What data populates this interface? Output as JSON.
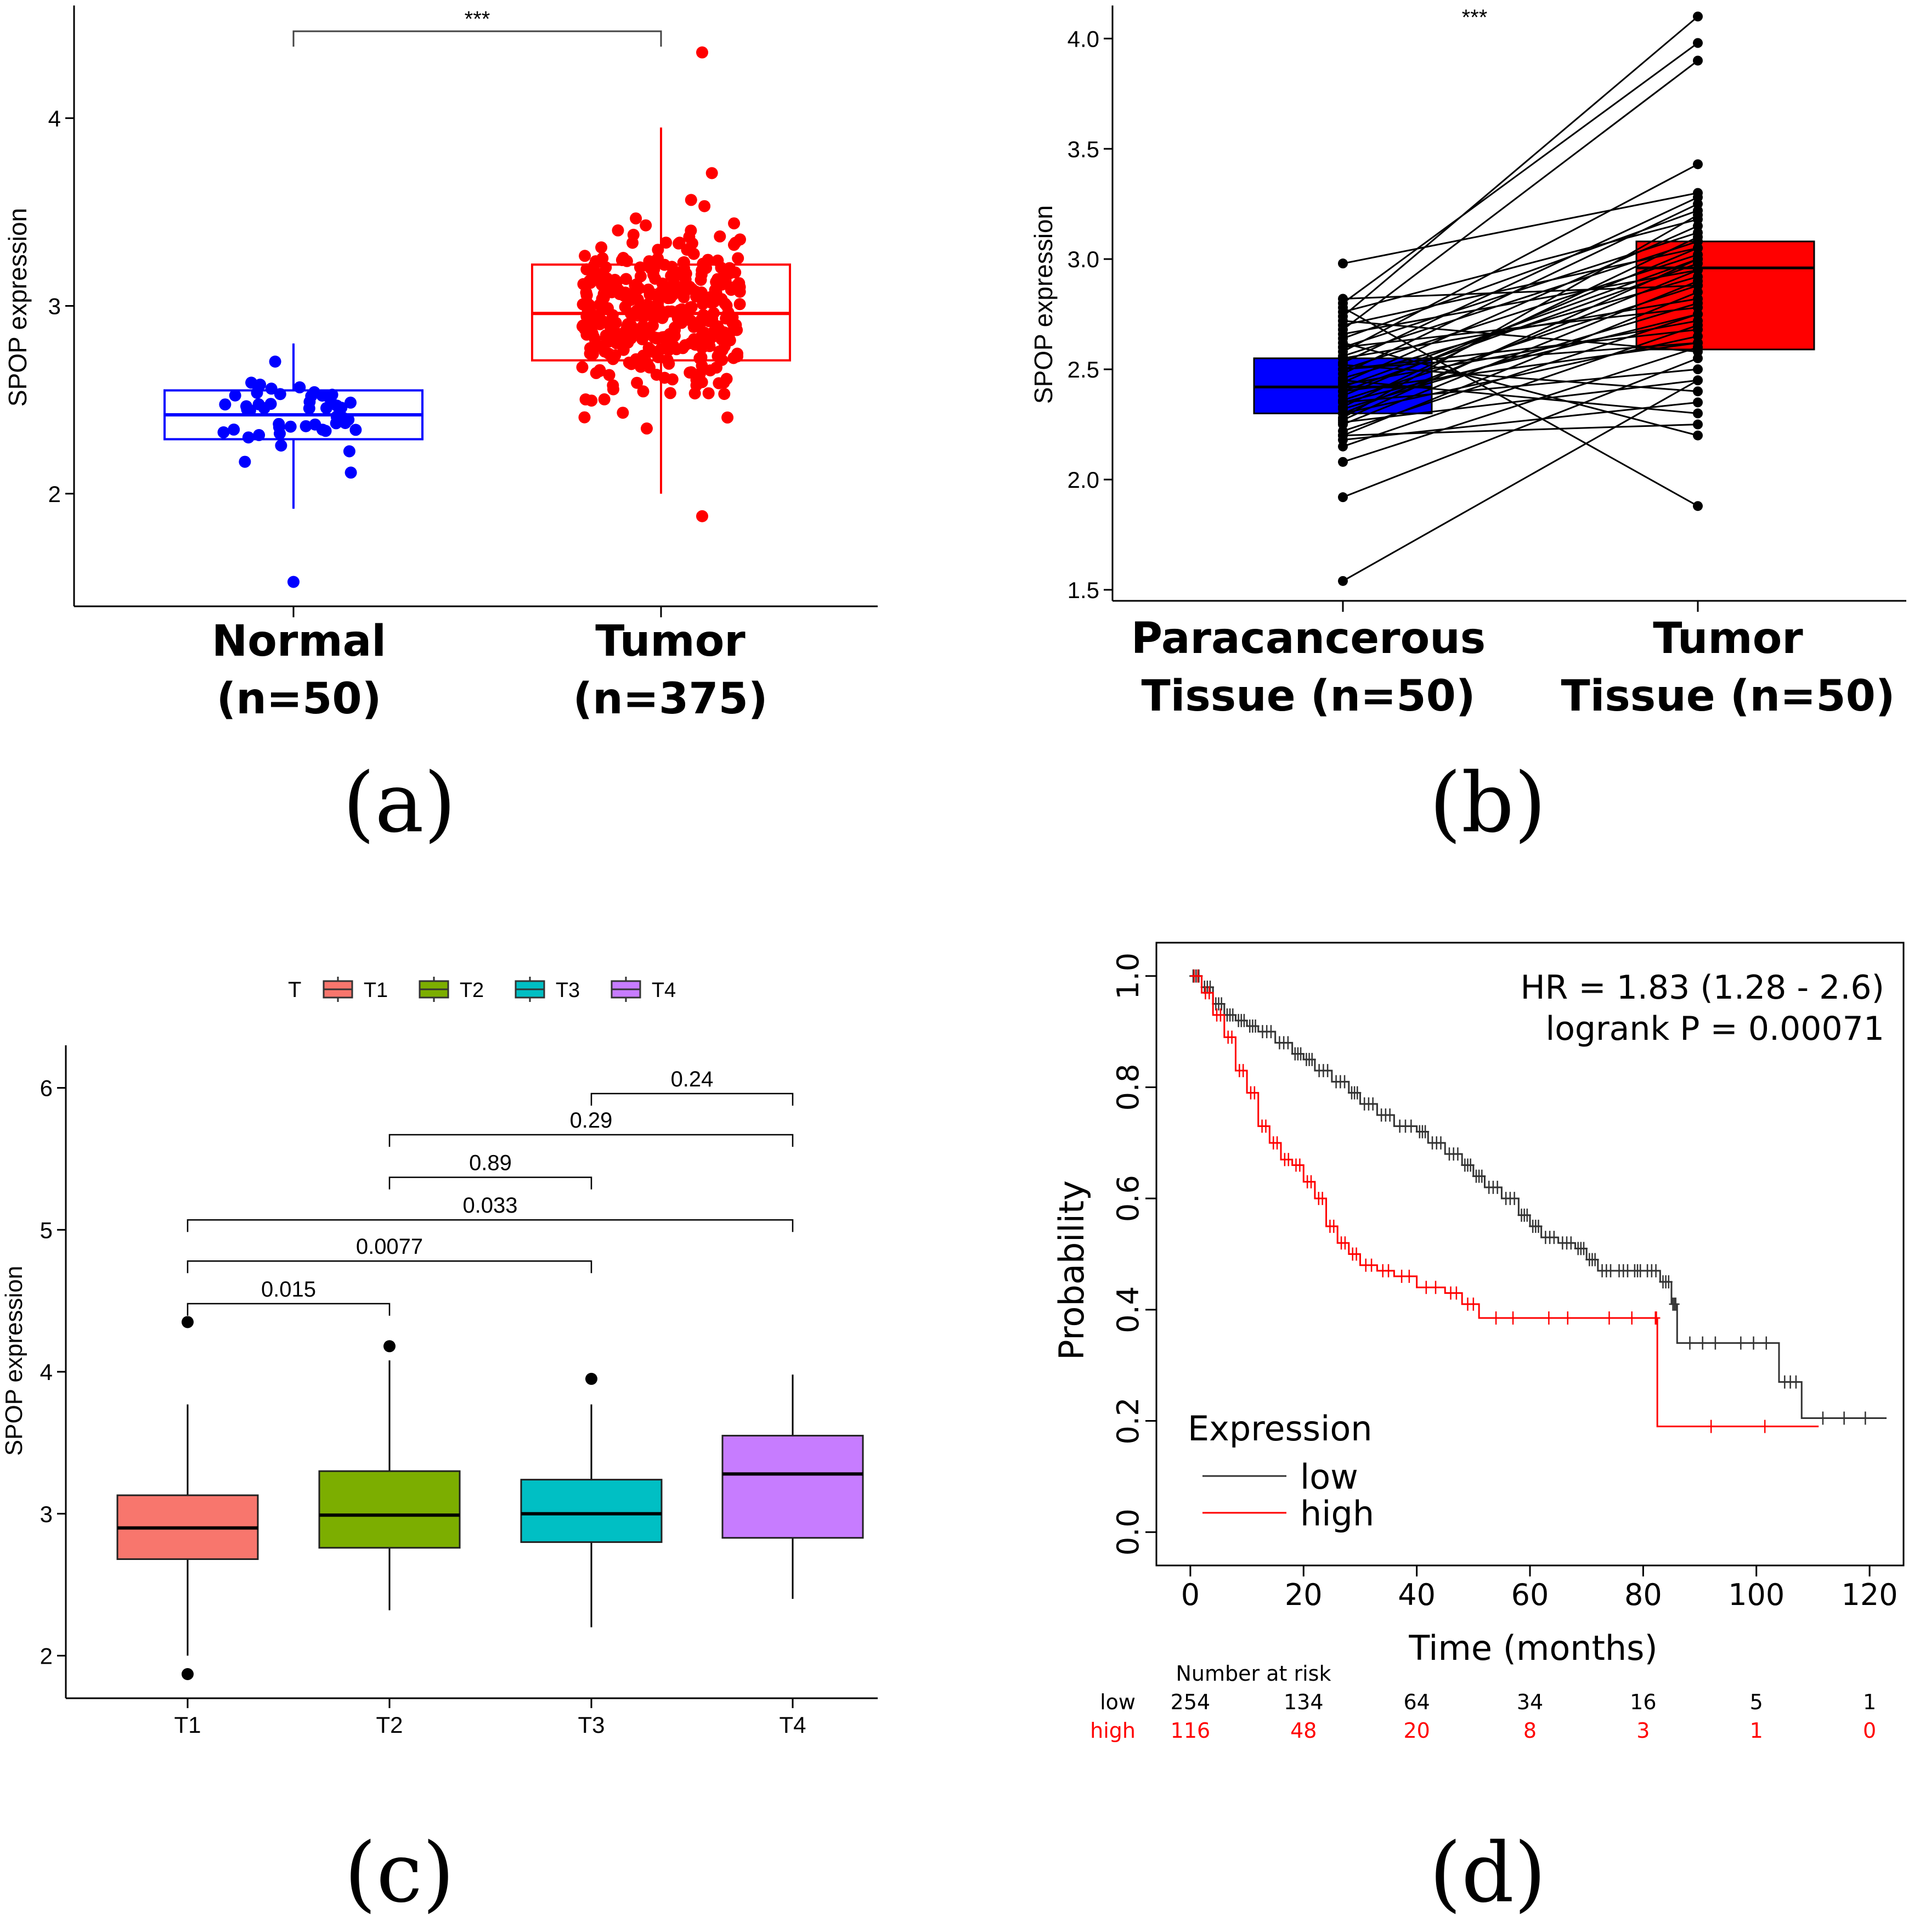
{
  "chart_data": [
    {
      "id": "a",
      "type": "box",
      "panel_label": "(a)",
      "ylabel": "SPOP expression",
      "ylim": [
        1.4,
        4.6
      ],
      "yticks": [
        "2",
        "3",
        "4"
      ],
      "significance": "***",
      "colors": {
        "normal": "#0000ff",
        "tumor": "#ff0000"
      },
      "groups": [
        {
          "name": "Normal",
          "n_label": "(n=50)",
          "n": 50,
          "min": 1.92,
          "q1": 2.29,
          "median": 2.42,
          "q3": 2.55,
          "max": 2.8,
          "outliers": [
            1.53
          ]
        },
        {
          "name": "Tumor",
          "n_label": "(n=375)",
          "n": 375,
          "min": 2.0,
          "q1": 2.71,
          "median": 2.96,
          "q3": 3.22,
          "max": 3.95,
          "outliers": [
            1.88,
            4.35
          ]
        }
      ]
    },
    {
      "id": "b",
      "type": "paired-box",
      "panel_label": "(b)",
      "ylabel": "SPOP expression",
      "ylim": [
        1.45,
        4.15
      ],
      "yticks": [
        "1.5",
        "2.0",
        "2.5",
        "3.0",
        "3.5",
        "4.0"
      ],
      "significance": "***",
      "colors": {
        "paracancerous": "#0000ff",
        "tumor": "#ff0000"
      },
      "groups": [
        {
          "name_line1": "Paracancerous",
          "name_line2": "Tissue (n=50)",
          "q1": 2.3,
          "median": 2.42,
          "q3": 2.55
        },
        {
          "name_line1": "Tumor",
          "name_line2": "Tissue (n=50)",
          "q1": 2.59,
          "median": 2.96,
          "q3": 3.08
        }
      ],
      "pairs": [
        [
          1.54,
          2.45
        ],
        [
          1.92,
          2.55
        ],
        [
          2.08,
          2.6
        ],
        [
          2.15,
          2.7
        ],
        [
          2.18,
          2.35
        ],
        [
          2.2,
          2.85
        ],
        [
          2.2,
          2.25
        ],
        [
          2.22,
          2.75
        ],
        [
          2.25,
          2.9
        ],
        [
          2.26,
          2.45
        ],
        [
          2.28,
          3.2
        ],
        [
          2.3,
          2.65
        ],
        [
          2.3,
          2.95
        ],
        [
          2.32,
          2.8
        ],
        [
          2.33,
          3.1
        ],
        [
          2.35,
          2.5
        ],
        [
          2.36,
          2.88
        ],
        [
          2.38,
          3.05
        ],
        [
          2.4,
          2.62
        ],
        [
          2.4,
          2.98
        ],
        [
          2.42,
          3.0
        ],
        [
          2.43,
          2.72
        ],
        [
          2.44,
          3.15
        ],
        [
          2.45,
          2.3
        ],
        [
          2.46,
          2.92
        ],
        [
          2.48,
          3.25
        ],
        [
          2.5,
          2.68
        ],
        [
          2.5,
          3.02
        ],
        [
          2.52,
          2.4
        ],
        [
          2.53,
          3.28
        ],
        [
          2.55,
          2.82
        ],
        [
          2.56,
          3.08
        ],
        [
          2.58,
          3.43
        ],
        [
          2.6,
          2.78
        ],
        [
          2.6,
          3.12
        ],
        [
          2.62,
          2.2
        ],
        [
          2.64,
          3.22
        ],
        [
          2.66,
          2.95
        ],
        [
          2.68,
          3.9
        ],
        [
          2.7,
          3.05
        ],
        [
          2.72,
          2.58
        ],
        [
          2.74,
          4.1
        ],
        [
          2.76,
          3.18
        ],
        [
          2.78,
          1.88
        ],
        [
          2.8,
          3.98
        ],
        [
          2.82,
          2.88
        ],
        [
          2.5,
          2.62
        ],
        [
          2.35,
          2.75
        ],
        [
          2.27,
          3.0
        ],
        [
          2.98,
          3.3
        ]
      ]
    },
    {
      "id": "c",
      "type": "box",
      "panel_label": "(c)",
      "ylabel": "SPOP expression",
      "legend_title": "T",
      "ylim": [
        1.7,
        6.3
      ],
      "yticks": [
        "2",
        "3",
        "4",
        "5",
        "6"
      ],
      "categories": [
        "T1",
        "T2",
        "T3",
        "T4"
      ],
      "groups": [
        {
          "name": "T1",
          "color": "#f8766d",
          "min": 2.0,
          "q1": 2.68,
          "median": 2.9,
          "q3": 3.13,
          "max": 3.77,
          "outliers": [
            1.87,
            4.35
          ]
        },
        {
          "name": "T2",
          "color": "#7cae00",
          "min": 2.32,
          "q1": 2.76,
          "median": 2.99,
          "q3": 3.3,
          "max": 4.08,
          "outliers": [
            4.18
          ]
        },
        {
          "name": "T3",
          "color": "#00bfc4",
          "min": 2.2,
          "q1": 2.8,
          "median": 3.0,
          "q3": 3.24,
          "max": 3.77,
          "outliers": [
            3.95
          ]
        },
        {
          "name": "T4",
          "color": "#c77cff",
          "min": 2.4,
          "q1": 2.83,
          "median": 3.28,
          "q3": 3.55,
          "max": 3.98,
          "outliers": []
        }
      ],
      "comparisons": [
        {
          "from": 0,
          "to": 1,
          "level": 4.48,
          "label": "0.015"
        },
        {
          "from": 0,
          "to": 2,
          "level": 4.78,
          "label": "0.0077"
        },
        {
          "from": 0,
          "to": 3,
          "level": 5.07,
          "label": "0.033"
        },
        {
          "from": 1,
          "to": 2,
          "level": 5.37,
          "label": "0.89"
        },
        {
          "from": 1,
          "to": 3,
          "level": 5.67,
          "label": "0.29"
        },
        {
          "from": 2,
          "to": 3,
          "level": 5.96,
          "label": "0.24"
        }
      ]
    },
    {
      "id": "d",
      "type": "line",
      "panel_label": "(d)",
      "xlabel": "Time (months)",
      "ylabel": "Probability",
      "xlim": [
        -6,
        126
      ],
      "ylim": [
        -0.06,
        1.06
      ],
      "xticks": [
        "0",
        "20",
        "40",
        "60",
        "80",
        "100",
        "120"
      ],
      "yticks": [
        "0.0",
        "0.2",
        "0.4",
        "0.6",
        "0.8",
        "1.0"
      ],
      "hr_text": "HR = 1.83 (1.28 - 2.6)",
      "logrank_text": "logrank P = 0.00071",
      "legend_title": "Expression",
      "series": [
        {
          "name": "low",
          "color": "#333333",
          "x": [
            0,
            2,
            4,
            6,
            8,
            10,
            12,
            15,
            18,
            20,
            22,
            25,
            28,
            30,
            33,
            36,
            40,
            42,
            45,
            48,
            50,
            52,
            55,
            58,
            60,
            62,
            65,
            68,
            70,
            72,
            75,
            78,
            80,
            83,
            85,
            86,
            95,
            104,
            108,
            123
          ],
          "y": [
            1.0,
            0.98,
            0.95,
            0.93,
            0.92,
            0.91,
            0.9,
            0.88,
            0.86,
            0.85,
            0.83,
            0.81,
            0.79,
            0.77,
            0.75,
            0.73,
            0.72,
            0.7,
            0.68,
            0.66,
            0.64,
            0.62,
            0.6,
            0.57,
            0.55,
            0.53,
            0.52,
            0.51,
            0.49,
            0.47,
            0.47,
            0.47,
            0.47,
            0.45,
            0.41,
            0.34,
            0.34,
            0.27,
            0.205,
            0.205
          ]
        },
        {
          "name": "high",
          "color": "#ff0000",
          "x": [
            0,
            2,
            4,
            6,
            8,
            10,
            12,
            14,
            16,
            18,
            20,
            22,
            24,
            26,
            28,
            30,
            33,
            36,
            40,
            45,
            48,
            51,
            60,
            70,
            82,
            82.5,
            111
          ],
          "y": [
            1.0,
            0.97,
            0.93,
            0.89,
            0.83,
            0.79,
            0.73,
            0.7,
            0.67,
            0.66,
            0.63,
            0.6,
            0.55,
            0.52,
            0.5,
            0.48,
            0.47,
            0.46,
            0.44,
            0.43,
            0.41,
            0.385,
            0.385,
            0.385,
            0.385,
            0.19,
            0.19
          ]
        }
      ],
      "risk_table": {
        "title": "Number at risk",
        "time_points": [
          0,
          20,
          40,
          60,
          80,
          100,
          120
        ],
        "rows": [
          {
            "label": "low",
            "color": "#000000",
            "values": [
              "254",
              "134",
              "64",
              "34",
              "16",
              "5",
              "1"
            ]
          },
          {
            "label": "high",
            "color": "#ff0000",
            "values": [
              "116",
              "48",
              "20",
              "8",
              "3",
              "1",
              "0"
            ]
          }
        ]
      }
    }
  ]
}
